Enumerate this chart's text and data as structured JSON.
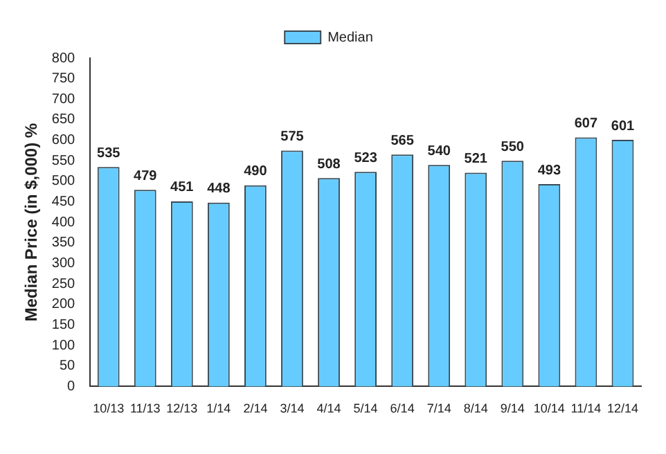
{
  "chart_data": {
    "type": "bar",
    "ylabel": "Median Price (in $,000) %",
    "categories": [
      "10/13",
      "11/13",
      "12/13",
      "1/14",
      "2/14",
      "3/14",
      "4/14",
      "5/14",
      "6/14",
      "7/14",
      "8/14",
      "9/14",
      "10/14",
      "11/14",
      "12/14"
    ],
    "series": [
      {
        "name": "Median",
        "color": "#66ccff",
        "values": [
          535,
          479,
          451,
          448,
          490,
          575,
          508,
          523,
          565,
          540,
          521,
          550,
          493,
          607,
          601
        ]
      }
    ],
    "ylim": [
      0,
      800
    ],
    "yticks": [
      0,
      50,
      100,
      150,
      200,
      250,
      300,
      350,
      400,
      450,
      500,
      550,
      600,
      650,
      700,
      750,
      800
    ],
    "grid": false,
    "legend": "top",
    "data_labels": true
  }
}
